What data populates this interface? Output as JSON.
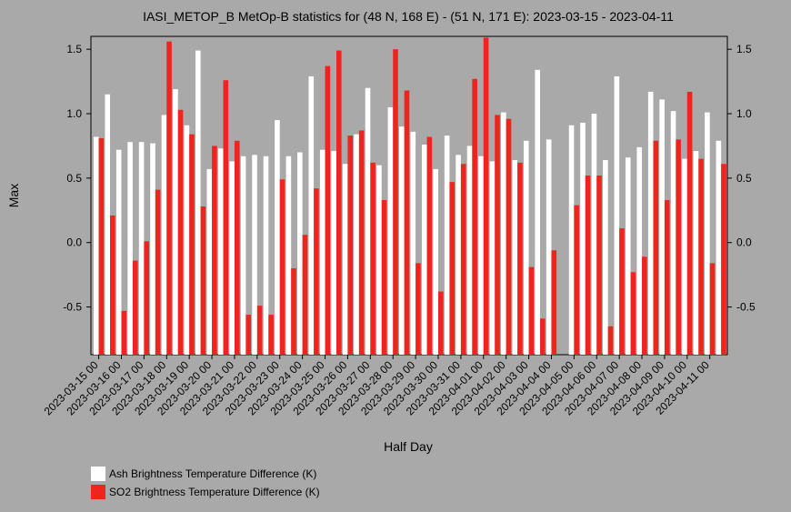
{
  "chart_data": {
    "type": "bar",
    "title": "IASI_METOP_B MetOp-B statistics for (48 N, 168 E) - (51 N, 171 E): 2023-03-15 - 2023-04-11",
    "xlabel": "Half Day",
    "ylabel": "Max",
    "ylim": [
      -0.87,
      1.6
    ],
    "yticks": [
      1.5,
      1.0,
      0.5,
      0.0,
      -0.5
    ],
    "ytick_labels": [
      "1.5",
      "1.0",
      "0.5",
      "0.0",
      "-0.5"
    ],
    "legend_position": "bottom-left",
    "x_tick_labels": [
      "2023-03-15 00",
      "2023-03-16 00",
      "2023-03-17 00",
      "2023-03-18 00",
      "2023-03-19 00",
      "2023-03-20 00",
      "2023-03-21 00",
      "2023-03-22 00",
      "2023-03-23 00",
      "2023-03-24 00",
      "2023-03-25 00",
      "2023-03-26 00",
      "2023-03-27 00",
      "2023-03-28 00",
      "2023-03-29 00",
      "2023-03-30 00",
      "2023-03-31 00",
      "2023-04-01 00",
      "2023-04-02 00",
      "2023-04-03 00",
      "2023-04-04 00",
      "2023-04-05 00",
      "2023-04-06 00",
      "2023-04-07 00",
      "2023-04-08 00",
      "2023-04-09 00",
      "2023-04-10 00",
      "2023-04-11 00"
    ],
    "categories": [
      "2023-03-15 00",
      "2023-03-15 12",
      "2023-03-16 00",
      "2023-03-16 12",
      "2023-03-17 00",
      "2023-03-17 12",
      "2023-03-18 00",
      "2023-03-18 12",
      "2023-03-19 00",
      "2023-03-19 12",
      "2023-03-20 00",
      "2023-03-20 12",
      "2023-03-21 00",
      "2023-03-21 12",
      "2023-03-22 00",
      "2023-03-22 12",
      "2023-03-23 00",
      "2023-03-23 12",
      "2023-03-24 00",
      "2023-03-24 12",
      "2023-03-25 00",
      "2023-03-25 12",
      "2023-03-26 00",
      "2023-03-26 12",
      "2023-03-27 00",
      "2023-03-27 12",
      "2023-03-28 00",
      "2023-03-28 12",
      "2023-03-29 00",
      "2023-03-29 12",
      "2023-03-30 00",
      "2023-03-30 12",
      "2023-03-31 00",
      "2023-03-31 12",
      "2023-04-01 00",
      "2023-04-01 12",
      "2023-04-02 00",
      "2023-04-02 12",
      "2023-04-03 00",
      "2023-04-03 12",
      "2023-04-04 00",
      "2023-04-04 12",
      "2023-04-05 00",
      "2023-04-05 12",
      "2023-04-06 00",
      "2023-04-06 12",
      "2023-04-07 00",
      "2023-04-07 12",
      "2023-04-08 00",
      "2023-04-08 12",
      "2023-04-09 00",
      "2023-04-09 12",
      "2023-04-10 00",
      "2023-04-10 12",
      "2023-04-11 00",
      "2023-04-11 12"
    ],
    "series": [
      {
        "name": "Ash Brightness Temperature Difference (K)",
        "color": "#ffffff",
        "values": [
          0.82,
          1.15,
          0.72,
          0.78,
          0.78,
          0.77,
          0.99,
          1.19,
          0.91,
          1.49,
          0.57,
          0.73,
          0.63,
          0.67,
          0.68,
          0.67,
          0.95,
          0.67,
          0.7,
          1.29,
          0.72,
          0.71,
          0.61,
          0.84,
          1.2,
          0.6,
          1.05,
          0.9,
          0.86,
          0.76,
          0.57,
          0.83,
          0.68,
          0.75,
          0.67,
          0.63,
          1.01,
          0.64,
          0.79,
          1.34,
          0.8,
          null,
          0.91,
          0.93,
          1.0,
          0.64,
          1.29,
          0.66,
          0.74,
          1.17,
          1.11,
          1.02,
          0.65,
          0.71,
          1.01,
          0.79
        ]
      },
      {
        "name": "SO2 Brightness Temperature Difference (K)",
        "color": "#f0241e",
        "values": [
          0.81,
          0.21,
          -0.53,
          -0.14,
          0.01,
          0.41,
          1.56,
          1.03,
          0.84,
          0.28,
          0.75,
          1.26,
          0.79,
          -0.56,
          -0.49,
          -0.56,
          0.49,
          -0.2,
          0.06,
          0.42,
          1.37,
          1.49,
          0.83,
          0.87,
          0.62,
          0.33,
          1.5,
          1.18,
          -0.16,
          0.82,
          -0.38,
          0.47,
          0.61,
          1.27,
          1.59,
          0.99,
          0.96,
          0.62,
          -0.19,
          -0.59,
          -0.06,
          null,
          0.29,
          0.52,
          0.52,
          -0.65,
          0.11,
          -0.23,
          -0.11,
          0.79,
          0.33,
          0.8,
          1.17,
          0.65,
          -0.16,
          0.61
        ]
      }
    ]
  }
}
